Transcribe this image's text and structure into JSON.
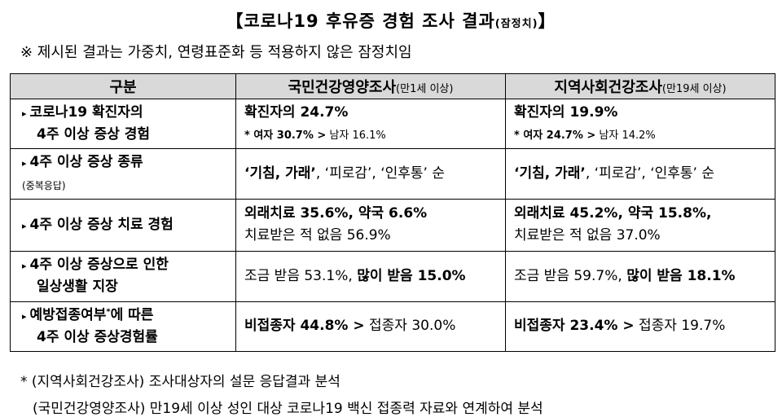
{
  "title": {
    "main": "【코로나19 후유증 경험 조사 결과",
    "paren": "(잠정치)",
    "close": "】"
  },
  "note": "※ 제시된 결과는 가중치, 연령표준화 등 적용하지 않은 잠정치임",
  "table": {
    "headers": {
      "col1": "구분",
      "col2_main": "국민건강영양조사",
      "col2_sub": "(만1세 이상)",
      "col3_main": "지역사회건강조사",
      "col3_sub": "(만19세 이상)"
    },
    "rows": [
      {
        "cat_line1": "코로나19 확진자의",
        "cat_line2": "4주 이상 증상 경험",
        "c2_line1": "확진자의 24.7%",
        "c2_line2_bold": "* 여자 30.7% >",
        "c2_line2_rest": " 남자 16.1%",
        "c3_line1": "확진자의 19.9%",
        "c3_line2_bold": "* 여자 24.7% >",
        "c3_line2_rest": " 남자 14.2%"
      },
      {
        "cat_line1": "4주 이상 증상 종류",
        "cat_line2": "(중복응답)",
        "c2_bold": "‘기침, 가래’",
        "c2_rest": ", ‘피로감’, ‘인후통’ 순",
        "c3_bold": "‘기침, 가래’",
        "c3_rest": ", ‘피로감’, ‘인후통’ 순"
      },
      {
        "cat_line1": "4주 이상 증상 치료 경험",
        "c2_line1": "외래치료 35.6%, 약국 6.6%",
        "c2_line2": "치료받은 적 없음 56.9%",
        "c3_line1": "외래치료 45.2%, 약국 15.8%,",
        "c3_line2": "치료받은 적 없음 37.0%"
      },
      {
        "cat_line1": "4주 이상 증상으로 인한",
        "cat_line2": "일상생활 지장",
        "c2_normal": "조금 받음 53.1%, ",
        "c2_bold": "많이 받음 15.0%",
        "c3_normal": "조금 받음 59.7%, ",
        "c3_bold": "많이 받음 18.1%"
      },
      {
        "cat_line1a": "예방접종여부",
        "cat_sup": "*",
        "cat_line1b": "에 따른",
        "cat_line2": "4주 이상 증상경험률",
        "c2_bold": "비접종자 44.8% >",
        "c2_rest": " 접종자 30.0%",
        "c3_bold": "비접종자 23.4% >",
        "c3_rest": " 접종자 19.7%"
      }
    ]
  },
  "footnotes": {
    "line1": "* (지역사회건강조사) 조사대상자의 설문 응답결과 분석",
    "line2": "(국민건강영양조사) 만19세 이상 성인 대상 코로나19 백신 접종력 자료와 연계하여 분석"
  }
}
